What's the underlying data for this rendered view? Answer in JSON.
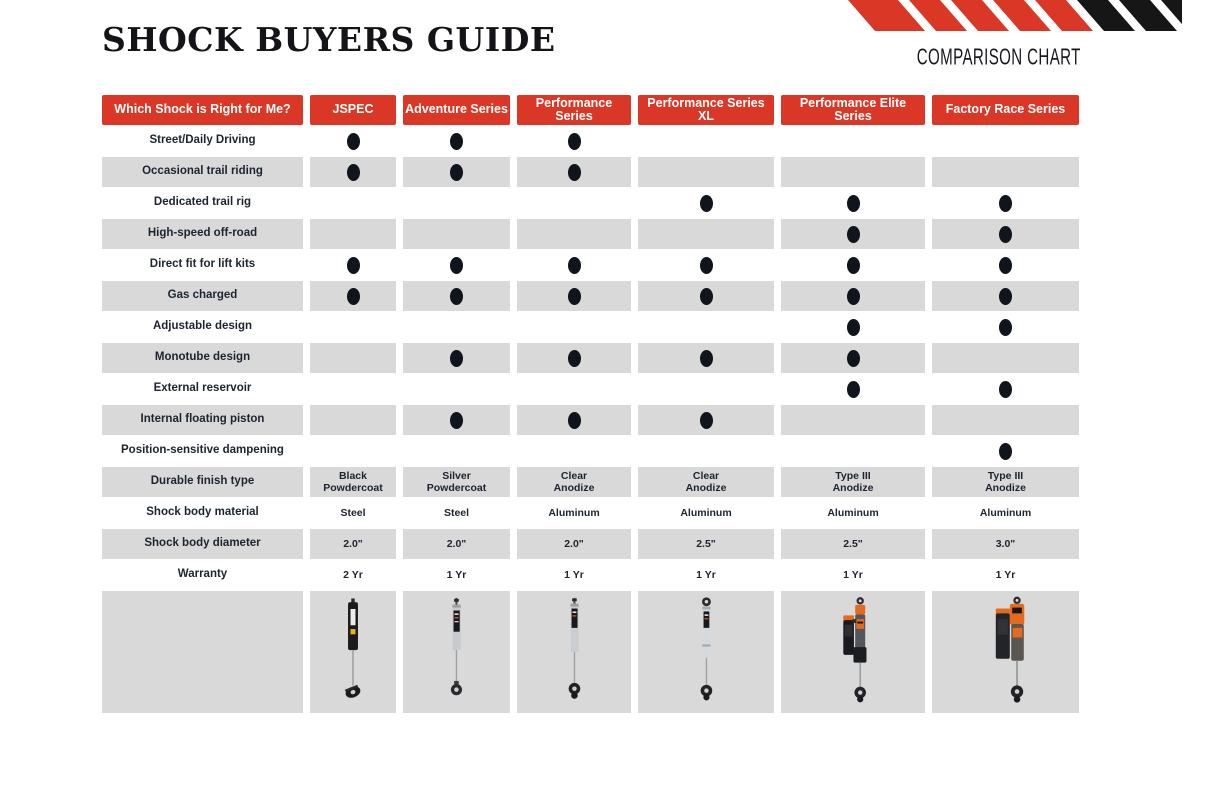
{
  "page": {
    "title": "SHOCK BUYERS GUIDE",
    "subtitle": "COMPARISON CHART"
  },
  "colors": {
    "accent_red": "#da3727",
    "stripe_black": "#161616",
    "cell_gray": "#d9d9d9",
    "text_ink": "#1c2430",
    "dot_dark": "#10141d"
  },
  "chart_data": {
    "type": "table",
    "title": "SHOCK BUYERS GUIDE",
    "subtitle": "COMPARISON CHART",
    "columns": [
      "Which Shock is Right for Me?",
      "JSPEC",
      "Adventure Series",
      "Performance Series",
      "Performance Series XL",
      "Performance Elite Series",
      "Factory Race Series"
    ],
    "rows": [
      {
        "label": "Street/Daily Driving",
        "cells": [
          "●",
          "●",
          "●",
          "",
          "",
          ""
        ]
      },
      {
        "label": "Occasional trail riding",
        "cells": [
          "●",
          "●",
          "●",
          "",
          "",
          ""
        ]
      },
      {
        "label": "Dedicated trail rig",
        "cells": [
          "",
          "",
          "",
          "●",
          "●",
          "●"
        ]
      },
      {
        "label": "High-speed off-road",
        "cells": [
          "",
          "",
          "",
          "",
          "●",
          "●"
        ]
      },
      {
        "label": "Direct fit for lift kits",
        "cells": [
          "●",
          "●",
          "●",
          "●",
          "●",
          "●"
        ]
      },
      {
        "label": "Gas charged",
        "cells": [
          "●",
          "●",
          "●",
          "●",
          "●",
          "●"
        ]
      },
      {
        "label": "Adjustable design",
        "cells": [
          "",
          "",
          "",
          "",
          "●",
          "●"
        ]
      },
      {
        "label": "Monotube design",
        "cells": [
          "",
          "●",
          "●",
          "●",
          "●",
          ""
        ]
      },
      {
        "label": "External reservoir",
        "cells": [
          "",
          "",
          "",
          "",
          "●",
          "●"
        ]
      },
      {
        "label": "Internal floating piston",
        "cells": [
          "",
          "●",
          "●",
          "●",
          "",
          ""
        ]
      },
      {
        "label": "Position-sensitive dampening",
        "cells": [
          "",
          "",
          "",
          "",
          "",
          "●"
        ]
      },
      {
        "label": "Durable finish type",
        "cells": [
          "Black\nPowdercoat",
          "Silver\nPowdercoat",
          "Clear\nAnodize",
          "Clear\nAnodize",
          "Type III\nAnodize",
          "Type III\nAnodize"
        ]
      },
      {
        "label": "Shock body material",
        "cells": [
          "Steel",
          "Steel",
          "Aluminum",
          "Aluminum",
          "Aluminum",
          "Aluminum"
        ]
      },
      {
        "label": "Shock body diameter",
        "cells": [
          "2.0\"",
          "2.0\"",
          "2.0\"",
          "2.5\"",
          "2.5\"",
          "3.0\""
        ]
      },
      {
        "label": "Warranty",
        "cells": [
          "2 Yr",
          "1 Yr",
          "1 Yr",
          "1 Yr",
          "1 Yr",
          "1 Yr"
        ]
      }
    ],
    "dot_symbol": "●",
    "shading": "alternate rows shaded gray, product photo row shaded gray",
    "product_image_icons": [
      "jspec-shock-photo",
      "adventure-series-shock-photo",
      "performance-series-shock-photo",
      "performance-series-xl-shock-photo",
      "performance-elite-series-shock-photo",
      "factory-race-series-shock-photo"
    ]
  }
}
